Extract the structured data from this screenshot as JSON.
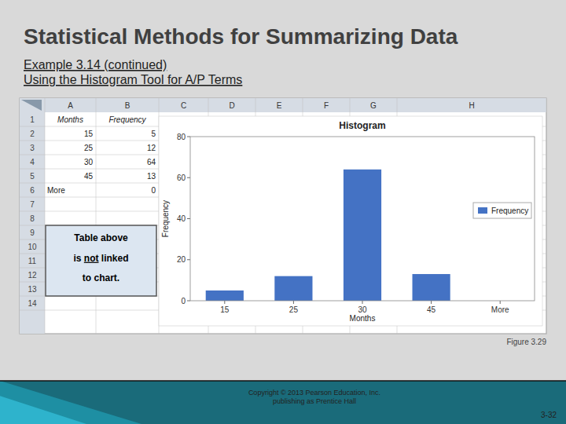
{
  "title": "Statistical Methods for Summarizing Data",
  "subtitle": [
    "Example 3.14 (continued)",
    "Using the Histogram Tool for A/P Terms"
  ],
  "spreadsheet": {
    "column_headers": [
      "A",
      "B",
      "C",
      "D",
      "E",
      "F",
      "G",
      "H"
    ],
    "row_headers": [
      1,
      2,
      3,
      4,
      5,
      6,
      7,
      8,
      9,
      10,
      11,
      12,
      13,
      14
    ],
    "cells": [
      [
        "Months",
        "Frequency"
      ],
      [
        "15",
        "5"
      ],
      [
        "25",
        "12"
      ],
      [
        "30",
        "64"
      ],
      [
        "45",
        "13"
      ],
      [
        "More",
        "0"
      ]
    ]
  },
  "note": [
    [
      "Table above"
    ],
    [
      "is ",
      "not",
      " linked"
    ],
    [
      "to chart."
    ]
  ],
  "caption": "Figure 3.29",
  "copyright": "Copyright © 2013 Pearson Education, Inc.\npublishing as Prentice Hall",
  "slide_number": "3-32",
  "chart_data": {
    "type": "bar",
    "title": "Histogram",
    "xlabel": "Months",
    "ylabel": "Frequency",
    "categories": [
      "15",
      "25",
      "30",
      "45",
      "More"
    ],
    "series": [
      {
        "name": "Frequency",
        "color": "#4472c4",
        "values": [
          5,
          12,
          64,
          13,
          0
        ]
      }
    ],
    "ylim": [
      0,
      80
    ],
    "yticks": [
      0,
      20,
      40,
      60,
      80
    ],
    "legend": "right",
    "grid": false
  }
}
